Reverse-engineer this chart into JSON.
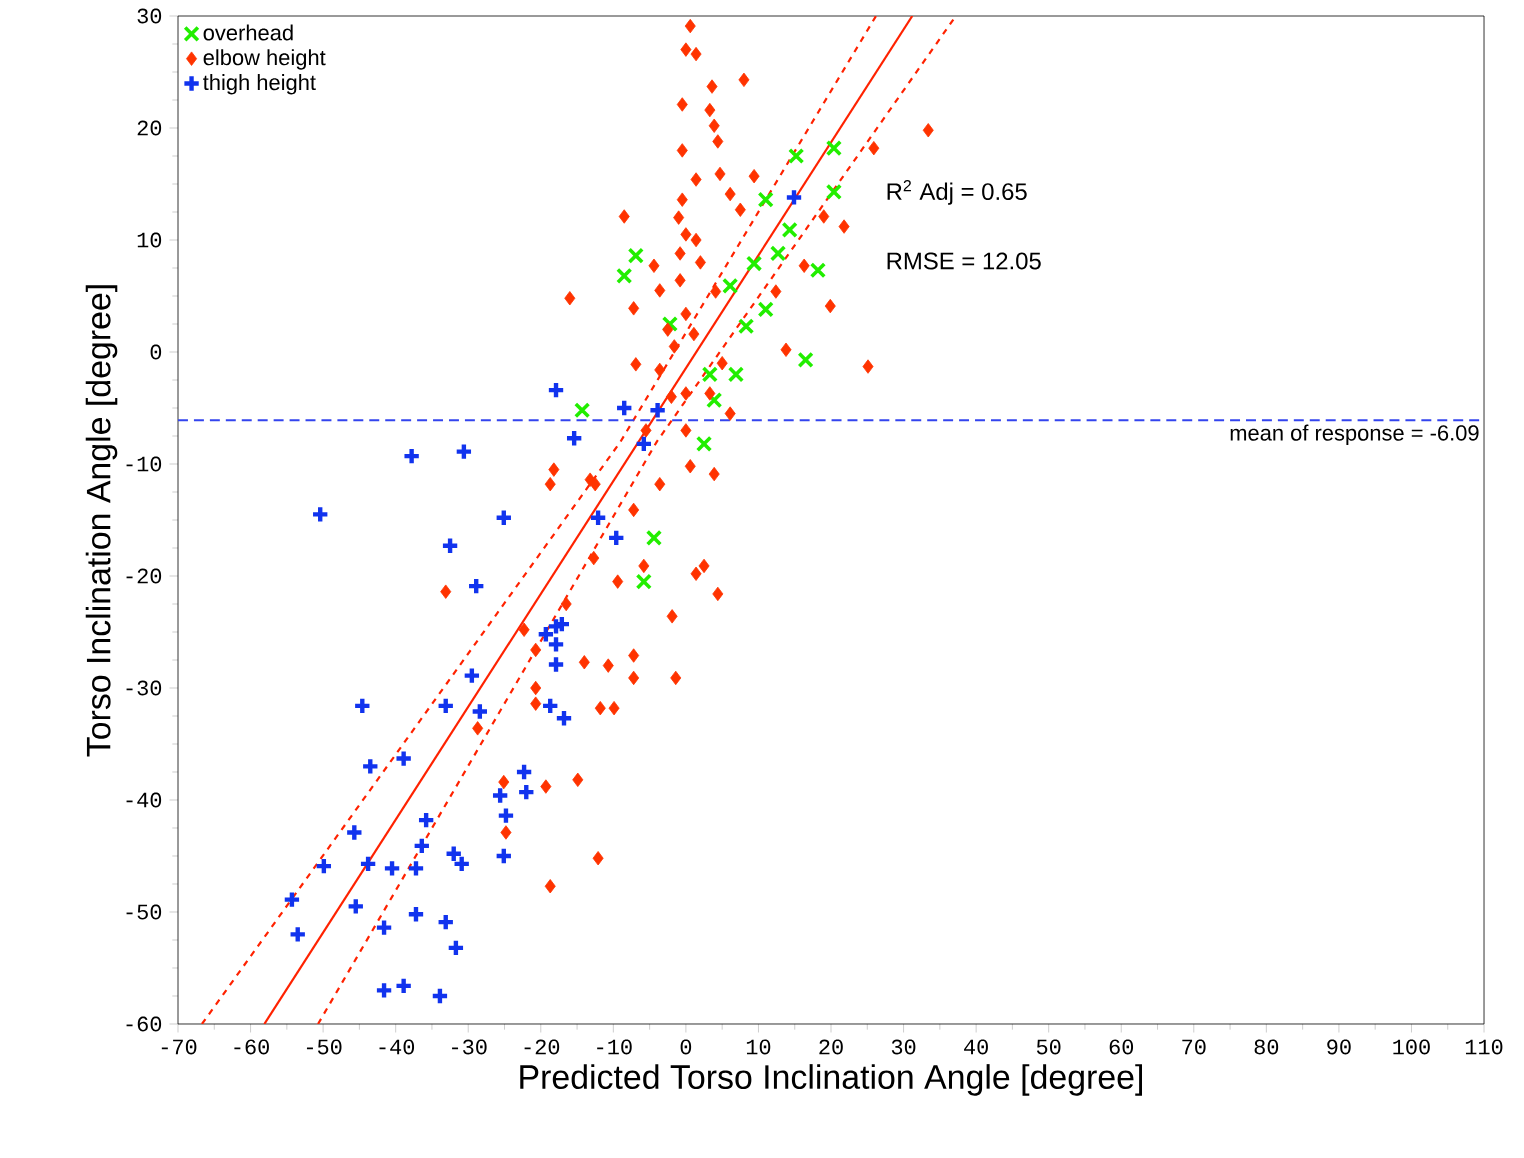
{
  "chart_data": {
    "type": "scatter",
    "xlabel": "Predicted Torso Inclination Angle [degree]",
    "ylabel": "Torso Inclination Angle [degree]",
    "xlim": [
      -70,
      110
    ],
    "ylim": [
      -60,
      30
    ],
    "xticks": [
      -70,
      -60,
      -50,
      -40,
      -30,
      -20,
      -10,
      0,
      10,
      20,
      30,
      40,
      50,
      60,
      70,
      80,
      90,
      100,
      110
    ],
    "yticks": [
      -60,
      -50,
      -40,
      -30,
      -20,
      -10,
      0,
      10,
      20,
      30
    ],
    "grid": false,
    "legend": "top left",
    "annotations": [
      "R$^{2}$ Adj = 0.65",
      "RMSE = 12.05"
    ],
    "ref_lines": [
      {
        "axis": "y",
        "value": -6.09,
        "label": "mean of response = -6.09",
        "color": "#3344ee",
        "line_style": "dashed"
      }
    ],
    "series": [
      {
        "name": "overhead",
        "color": "#22ee00",
        "marker": "cross",
        "x": [
          15.2,
          20.4,
          20.4,
          11.0,
          -6.9,
          -8.5,
          18.2,
          9.4,
          14.3,
          12.7,
          11.0,
          6.1,
          -2.2,
          8.3,
          16.5,
          3.3,
          6.9,
          3.9,
          -14.3,
          2.5,
          -4.4,
          -5.8
        ],
        "values": [
          17.5,
          18.2,
          14.3,
          13.6,
          8.6,
          6.8,
          7.3,
          7.9,
          10.9,
          8.8,
          3.8,
          5.9,
          2.5,
          2.3,
          -0.7,
          -2.0,
          -2.0,
          -4.3,
          -5.2,
          -8.2,
          -16.6,
          -20.5
        ]
      },
      {
        "name": "elbow height",
        "color": "#ff3300",
        "marker": "diamond",
        "x": [
          0.6,
          0.0,
          1.4,
          3.6,
          8.0,
          -0.5,
          3.3,
          3.9,
          4.4,
          -0.5,
          33.4,
          25.9,
          1.4,
          4.7,
          9.4,
          -0.5,
          6.1,
          7.5,
          -8.5,
          19.0,
          21.8,
          0.0,
          1.4,
          -4.4,
          -0.8,
          -3.6,
          -7.2,
          -16.0,
          4.1,
          -0.8,
          12.4,
          16.3,
          19.9,
          0.0,
          13.8,
          25.1,
          -1.6,
          1.1,
          -6.9,
          -3.6,
          0.0,
          3.3,
          6.1,
          -5.5,
          0.0,
          0.6,
          3.9,
          -18.2,
          -18.7,
          -13.2,
          -3.6,
          -7.2,
          -12.7,
          -9.4,
          -5.8,
          2.5,
          1.4,
          4.4,
          -1.9,
          -16.5,
          -22.3,
          -20.7,
          -14.0,
          -10.7,
          -7.2,
          -7.2,
          -1.4,
          -20.7,
          -20.7,
          -11.8,
          -9.9,
          -28.7,
          -25.1,
          -19.3,
          -14.9,
          -24.8,
          -12.1,
          -18.7,
          -33.1,
          -12.5,
          -1.0,
          2.0,
          -2.5,
          5.0,
          -2.0
        ],
        "values": [
          29.1,
          27.0,
          26.6,
          23.7,
          24.3,
          22.1,
          21.6,
          20.2,
          18.8,
          18.0,
          19.8,
          18.2,
          15.4,
          15.9,
          15.7,
          13.6,
          14.1,
          12.7,
          12.1,
          12.1,
          11.2,
          10.5,
          10.0,
          7.7,
          8.8,
          5.5,
          3.9,
          4.8,
          5.4,
          6.4,
          5.4,
          7.7,
          4.1,
          3.4,
          0.2,
          -1.3,
          0.5,
          1.6,
          -1.1,
          -1.6,
          -3.7,
          -3.7,
          -5.5,
          -7.0,
          -7.0,
          -10.2,
          -10.9,
          -10.5,
          -11.8,
          -11.4,
          -11.8,
          -14.1,
          -18.4,
          -20.5,
          -19.1,
          -19.1,
          -19.8,
          -21.6,
          -23.6,
          -22.5,
          -24.8,
          -26.6,
          -27.7,
          -28.0,
          -27.1,
          -29.1,
          -29.1,
          -30.0,
          -31.4,
          -31.8,
          -31.8,
          -33.6,
          -38.4,
          -38.8,
          -38.2,
          -42.9,
          -45.2,
          -47.7,
          -21.4,
          -11.8,
          12.0,
          8.0,
          2.0,
          -1.0,
          -4.0
        ]
      },
      {
        "name": "thigh height",
        "color": "#1133ee",
        "marker": "plus",
        "x": [
          -17.9,
          -8.5,
          -15.4,
          -37.8,
          -30.6,
          -50.4,
          -25.1,
          -32.5,
          -28.9,
          -12.1,
          -9.6,
          -44.6,
          -33.1,
          -29.5,
          -28.4,
          -17.9,
          -17.1,
          -17.9,
          -17.9,
          -18.7,
          -16.8,
          -43.5,
          -38.9,
          -22.3,
          -22.0,
          -25.6,
          -24.8,
          -45.7,
          -35.8,
          -36.4,
          -49.9,
          -43.8,
          -40.5,
          -37.2,
          -32.0,
          -30.9,
          -25.1,
          -54.3,
          -45.5,
          -53.5,
          -41.6,
          -37.2,
          -33.1,
          -31.7,
          -41.6,
          -38.9,
          -33.9,
          -3.9,
          14.9,
          -5.8,
          -19.3
        ],
        "values": [
          -3.4,
          -5.0,
          -7.7,
          -9.3,
          -8.9,
          -14.5,
          -14.8,
          -17.3,
          -20.9,
          -14.8,
          -16.6,
          -31.6,
          -31.6,
          -28.9,
          -32.1,
          -24.5,
          -24.3,
          -26.1,
          -27.9,
          -31.6,
          -32.7,
          -37.0,
          -36.3,
          -37.5,
          -39.3,
          -39.6,
          -41.4,
          -42.9,
          -41.8,
          -44.1,
          -45.9,
          -45.7,
          -46.1,
          -46.1,
          -44.8,
          -45.7,
          -45.0,
          -48.9,
          -49.5,
          -52.0,
          -51.4,
          -50.2,
          -50.9,
          -53.2,
          -57.0,
          -56.6,
          -57.5,
          -5.2,
          13.8,
          -8.2,
          -25.2
        ]
      },
      {
        "type": "line",
        "color": "#ff2200",
        "line_style": "solid",
        "marker": "none",
        "x": [
          -58.1,
          31.2
        ],
        "values": [
          -60,
          30
        ]
      },
      {
        "type": "line",
        "color": "#ff2200",
        "line_style": "dashed",
        "marker": "none",
        "x": [
          -66.7,
          -9.0,
          26.2
        ],
        "values": [
          -60,
          -8,
          30
        ]
      },
      {
        "type": "line",
        "color": "#ff2200",
        "line_style": "dashed",
        "marker": "none",
        "x": [
          -50.7,
          -4.0,
          37.2
        ],
        "values": [
          -60,
          -8,
          30
        ]
      }
    ]
  }
}
